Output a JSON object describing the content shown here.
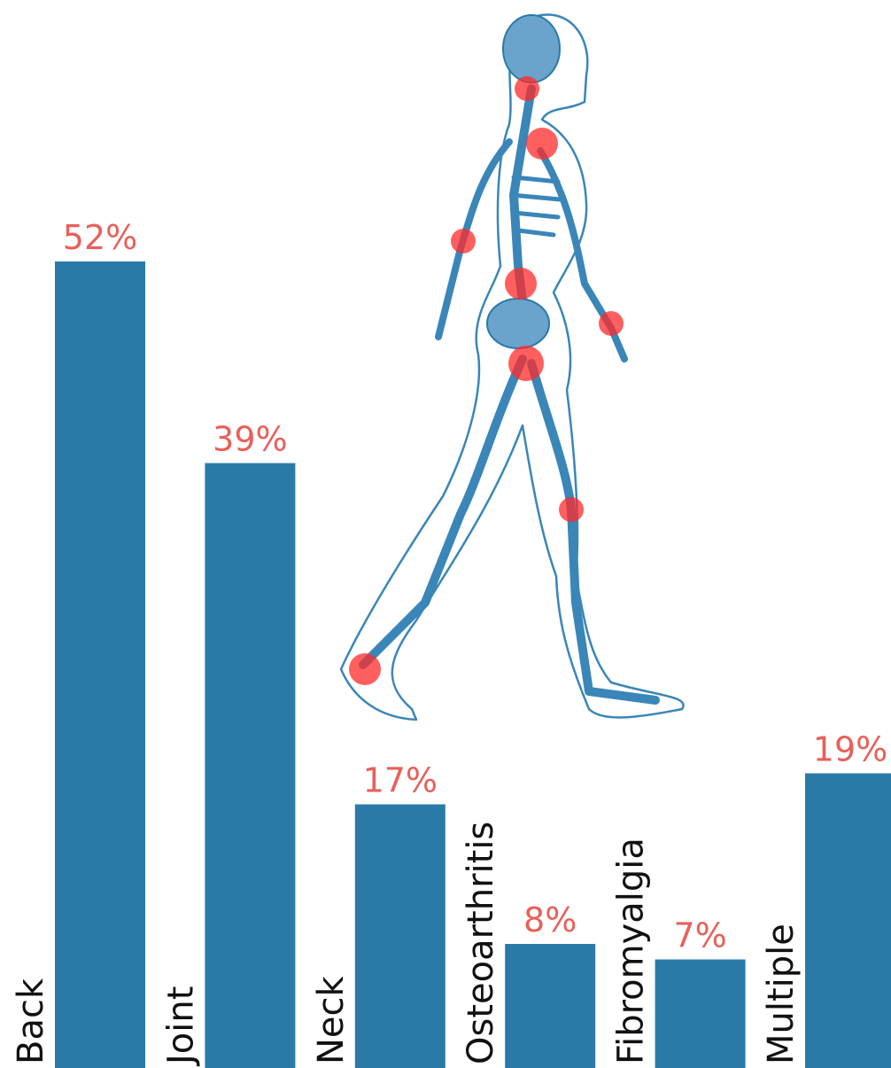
{
  "chart_data": {
    "type": "bar",
    "categories": [
      "Back",
      "Joint",
      "Neck",
      "Osteoarthritis",
      "Fibromyalgia",
      "Multiple"
    ],
    "values": [
      52,
      39,
      17,
      8,
      7,
      19
    ],
    "value_labels": [
      "52%",
      "39%",
      "17%",
      "8%",
      "7%",
      "19%"
    ],
    "color": "#2a7aa8",
    "label_color": "#e8605a"
  }
}
